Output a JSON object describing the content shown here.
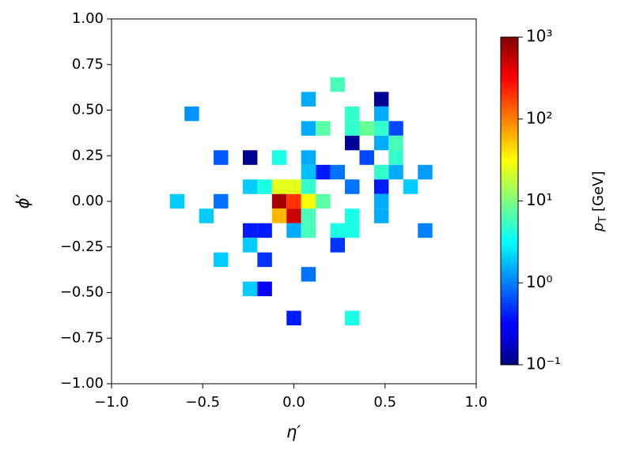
{
  "chart_data": {
    "type": "heatmap",
    "xlabel": "η′",
    "ylabel": "ϕ′",
    "colorbar_label_symbol": "p",
    "colorbar_label_subscript": "T",
    "colorbar_label_unit": "[GeV]",
    "colormap": "jet",
    "color_scale": "log",
    "cell_size": 0.08,
    "xlim": [
      -1,
      1
    ],
    "ylim": [
      -1,
      1
    ],
    "xticks": [
      {
        "value": -1,
        "label": "−1.0"
      },
      {
        "value": -0.5,
        "label": "−0.5"
      },
      {
        "value": 0,
        "label": "0.0"
      },
      {
        "value": 0.5,
        "label": "0.5"
      },
      {
        "value": 1,
        "label": "1.0"
      }
    ],
    "yticks": [
      {
        "value": 1,
        "label": "1.00"
      },
      {
        "value": 0.75,
        "label": "0.75"
      },
      {
        "value": 0.5,
        "label": "0.50"
      },
      {
        "value": 0.25,
        "label": "0.25"
      },
      {
        "value": 0,
        "label": "0.00"
      },
      {
        "value": -0.25,
        "label": "−0.25"
      },
      {
        "value": -0.5,
        "label": "−0.50"
      },
      {
        "value": -0.75,
        "label": "−0.75"
      },
      {
        "value": -1,
        "label": "−1.00"
      }
    ],
    "clim": [
      0.1,
      1000
    ],
    "cticks": [
      {
        "value": 1000,
        "label": "10³"
      },
      {
        "value": 100,
        "label": "10²"
      },
      {
        "value": 10,
        "label": "10¹"
      },
      {
        "value": 1,
        "label": "10⁰"
      },
      {
        "value": 0.1,
        "label": "10⁻¹"
      }
    ],
    "x": [
      0.24,
      0.48,
      0.08,
      -0.56,
      0.32,
      0.48,
      0.08,
      0.16,
      0.32,
      0.4,
      0.48,
      0.56,
      0.32,
      0.48,
      0.56,
      -0.4,
      -0.24,
      -0.08,
      0.08,
      0.4,
      0.56,
      0.16,
      0.24,
      0.08,
      0.48,
      0.56,
      0.72,
      -0.24,
      -0.16,
      -0.08,
      0.0,
      0.08,
      0.32,
      0.48,
      0.64,
      -0.64,
      -0.4,
      -0.08,
      0.0,
      0.08,
      0.16,
      0.48,
      -0.48,
      -0.08,
      0.0,
      0.08,
      0.32,
      0.48,
      -0.24,
      -0.16,
      0.0,
      0.08,
      0.24,
      0.32,
      0.72,
      -0.24,
      0.24,
      -0.4,
      -0.16,
      0.08,
      -0.24,
      -0.16,
      0.0,
      0.32
    ],
    "y": [
      0.64,
      0.56,
      0.56,
      0.48,
      0.48,
      0.48,
      0.4,
      0.4,
      0.4,
      0.4,
      0.4,
      0.4,
      0.32,
      0.32,
      0.32,
      0.24,
      0.24,
      0.24,
      0.24,
      0.24,
      0.24,
      0.16,
      0.16,
      0.16,
      0.16,
      0.16,
      0.16,
      0.08,
      0.08,
      0.08,
      0.08,
      0.08,
      0.08,
      0.08,
      0.08,
      0.0,
      0.0,
      0.0,
      0.0,
      0.0,
      0.0,
      0.0,
      -0.08,
      -0.08,
      -0.08,
      -0.08,
      -0.08,
      -0.08,
      -0.16,
      -0.16,
      -0.16,
      -0.16,
      -0.16,
      -0.16,
      -0.16,
      -0.24,
      -0.24,
      -0.32,
      -0.32,
      -0.4,
      -0.48,
      -0.48,
      -0.64,
      -0.64
    ],
    "values": [
      6,
      0.12,
      1.5,
      1.2,
      5,
      1.5,
      1.5,
      7,
      5,
      8,
      5,
      0.6,
      0.12,
      1.5,
      6,
      0.7,
      0.12,
      4,
      1.5,
      0.6,
      5,
      0.4,
      0.9,
      1.8,
      5,
      1.5,
      1.3,
      2,
      4,
      25,
      25,
      5,
      0.9,
      0.4,
      2,
      2,
      0.9,
      700,
      200,
      30,
      7,
      1.5,
      2,
      60,
      500,
      6,
      4,
      1.5,
      0.4,
      0.4,
      1.5,
      6,
      4,
      4,
      1,
      2,
      0.5,
      2,
      0.5,
      0.9,
      2,
      0.3,
      0.4,
      4
    ]
  }
}
